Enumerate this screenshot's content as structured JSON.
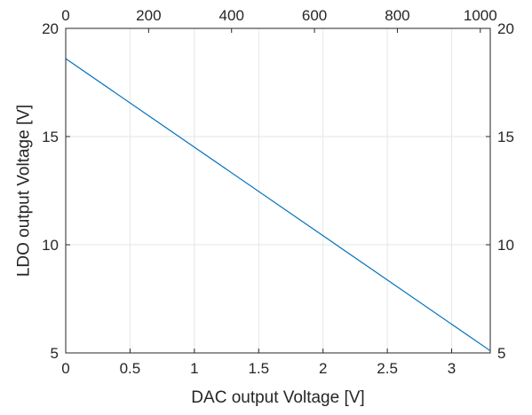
{
  "chart_data": {
    "type": "line",
    "title": "",
    "xlabel": "DAC output Voltage [V]",
    "ylabel": "LDO output Voltage [V]",
    "xlim": [
      0,
      3.3
    ],
    "ylim": [
      5,
      20
    ],
    "x2lim": [
      0,
      1024
    ],
    "xticks": [
      0,
      0.5,
      1,
      1.5,
      2,
      2.5,
      3
    ],
    "xtick_labels": [
      "0",
      "0.5",
      "1",
      "1.5",
      "2",
      "2.5",
      "3"
    ],
    "x2ticks": [
      0,
      200,
      400,
      600,
      800,
      1000
    ],
    "x2tick_labels": [
      "0",
      "200",
      "400",
      "600",
      "800",
      "1000"
    ],
    "yticks": [
      5,
      10,
      15,
      20
    ],
    "ytick_labels": [
      "5",
      "10",
      "15",
      "20"
    ],
    "y2tick_labels": [
      "5",
      "10",
      "15",
      "20"
    ],
    "grid": true,
    "legend": "none",
    "series": [
      {
        "color": "#0072bd",
        "x": [
          0,
          3.3
        ],
        "y": [
          18.6,
          5.1
        ]
      }
    ]
  }
}
